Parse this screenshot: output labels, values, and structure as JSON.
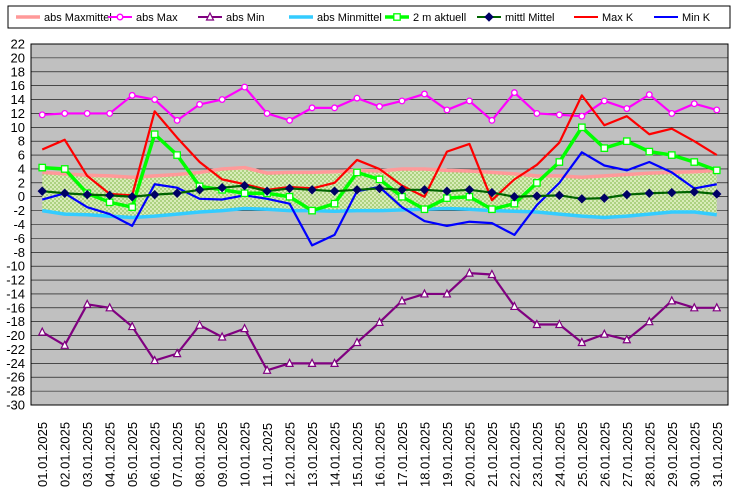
{
  "chart_data": {
    "type": "line",
    "ylim": [
      -30,
      22
    ],
    "ytick_step": 2,
    "grid": true,
    "legend_placement": "top",
    "plot_background": "#c0c0c0",
    "categories": [
      "01.01.2025",
      "02.01.2025",
      "03.01.2025",
      "04.01.2025",
      "05.01.2025",
      "06.01.2025",
      "07.01.2025",
      "08.01.2025",
      "09.01.2025",
      "10.01.2025",
      "11.01.2025",
      "12.01.2025",
      "13.01.2025",
      "14.01.2025",
      "15.01.2025",
      "16.01.2025",
      "17.01.2025",
      "18.01.2025",
      "19.01.2025",
      "20.01.2025",
      "21.01.2025",
      "22.01.2025",
      "23.01.2025",
      "24.01.2025",
      "25.01.2025",
      "26.01.2025",
      "27.01.2025",
      "28.01.2025",
      "29.01.2025",
      "30.01.2025",
      "31.01.2025"
    ],
    "band": {
      "upper_series": "abs Maxmittel",
      "lower_series": "abs Minmittel",
      "fill": "#c8e0a0"
    },
    "series": [
      {
        "name": "abs Maxmittel",
        "color": "#ff9999",
        "style": "thick",
        "values": [
          3.5,
          3.3,
          3.1,
          3.0,
          2.8,
          3.0,
          3.2,
          3.5,
          4.0,
          4.2,
          3.4,
          3.5,
          3.5,
          3.6,
          3.8,
          3.7,
          4.0,
          4.0,
          3.8,
          3.7,
          3.5,
          3.3,
          3.0,
          3.0,
          2.8,
          3.0,
          3.2,
          3.4,
          3.5,
          3.6,
          3.8
        ]
      },
      {
        "name": "abs Max",
        "color": "#ff00ff",
        "marker": "circle",
        "values": [
          11.8,
          12.0,
          12.0,
          12.0,
          14.6,
          14.0,
          11.0,
          13.3,
          14.0,
          15.8,
          12.0,
          11.0,
          12.8,
          12.8,
          14.2,
          13.0,
          13.8,
          14.8,
          12.5,
          13.8,
          11.0,
          15.0,
          12.0,
          11.8,
          11.6,
          13.8,
          12.7,
          14.7,
          12.0,
          13.4,
          12.5
        ]
      },
      {
        "name": "abs Min",
        "color": "#800080",
        "marker": "triangle",
        "values": [
          -19.5,
          -21.4,
          -15.5,
          -16.0,
          -18.7,
          -23.6,
          -22.6,
          -18.5,
          -20.2,
          -19.0,
          -25.0,
          -24.0,
          -24.0,
          -24.0,
          -21.0,
          -18.1,
          -15.0,
          -14.0,
          -14.0,
          -11.0,
          -11.2,
          -15.8,
          -18.4,
          -18.4,
          -21.0,
          -19.8,
          -20.6,
          -18.0,
          -15.0,
          -16.0,
          -16.0
        ]
      },
      {
        "name": "abs Minmittel",
        "color": "#33ccff",
        "style": "thick",
        "values": [
          -2.0,
          -2.5,
          -2.6,
          -2.8,
          -3.0,
          -2.8,
          -2.5,
          -2.2,
          -2.0,
          -1.7,
          -1.8,
          -2.0,
          -2.0,
          -2.1,
          -2.0,
          -2.0,
          -1.9,
          -1.8,
          -1.7,
          -1.8,
          -2.0,
          -2.1,
          -2.2,
          -2.5,
          -2.8,
          -3.0,
          -2.8,
          -2.5,
          -2.2,
          -2.2,
          -2.6
        ]
      },
      {
        "name": "2 m aktuell",
        "color": "#00ff00",
        "marker": "square",
        "style": "thick",
        "values": [
          4.2,
          4.0,
          0.5,
          -0.8,
          -1.5,
          9.0,
          6.0,
          1.5,
          1.0,
          0.5,
          0.5,
          0.0,
          -2.0,
          -1.0,
          3.5,
          2.5,
          0.0,
          -1.8,
          -0.2,
          0.0,
          -1.8,
          -1.0,
          2.0,
          5.0,
          10.0,
          7.0,
          8.0,
          6.5,
          6.0,
          5.0,
          3.8
        ]
      },
      {
        "name": "mittl Mittel",
        "color": "#006400",
        "marker": "diamond",
        "values": [
          0.8,
          0.5,
          0.3,
          0.2,
          0.0,
          0.3,
          0.5,
          1.0,
          1.3,
          1.6,
          0.8,
          1.2,
          1.0,
          0.8,
          1.0,
          1.2,
          1.0,
          1.0,
          0.8,
          1.0,
          0.6,
          0.0,
          0.1,
          0.2,
          -0.3,
          -0.2,
          0.3,
          0.5,
          0.6,
          0.7,
          0.4
        ]
      },
      {
        "name": "Max K",
        "color": "#ff0000",
        "values": [
          6.8,
          8.2,
          3.0,
          0.4,
          0.2,
          12.3,
          8.5,
          5.0,
          2.5,
          1.8,
          1.0,
          1.4,
          1.2,
          2.0,
          5.3,
          4.0,
          1.6,
          0.0,
          6.5,
          7.6,
          -0.5,
          2.5,
          4.6,
          7.8,
          14.6,
          10.3,
          11.6,
          9.0,
          9.8,
          8.0,
          6.0
        ]
      },
      {
        "name": "Min K",
        "color": "#0000ff",
        "values": [
          -0.4,
          0.5,
          -1.5,
          -2.5,
          -4.2,
          1.8,
          1.3,
          -0.3,
          -0.4,
          0.2,
          -0.3,
          -1.0,
          -7.0,
          -5.5,
          0.8,
          1.4,
          -1.5,
          -3.5,
          -4.2,
          -3.6,
          -3.8,
          -5.5,
          -1.2,
          2.0,
          6.4,
          4.5,
          3.8,
          5.0,
          3.5,
          1.2,
          1.8
        ]
      }
    ]
  }
}
